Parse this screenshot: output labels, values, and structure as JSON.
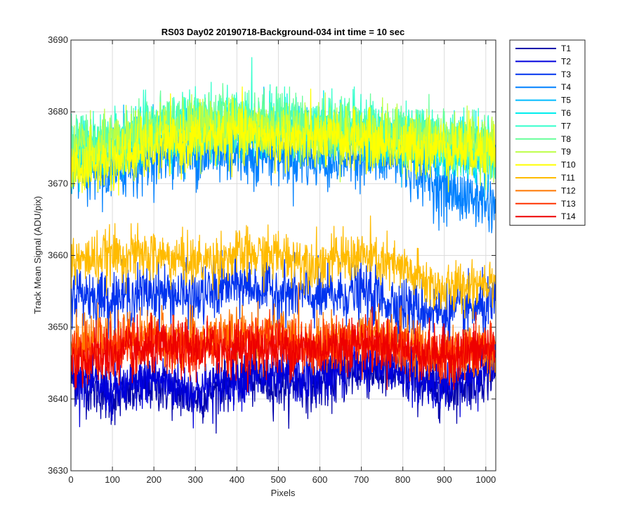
{
  "chart_data": {
    "type": "line",
    "title": "RS03 Day02 20190718-Background-034 int time = 10 sec",
    "xlabel": "Pixels",
    "ylabel": "Track Mean Signal (ADU/pix)",
    "xlim": [
      0,
      1024
    ],
    "ylim": [
      3630,
      3690
    ],
    "xticks": [
      0,
      100,
      200,
      300,
      400,
      500,
      600,
      700,
      800,
      900,
      1000
    ],
    "yticks": [
      3630,
      3640,
      3650,
      3660,
      3670,
      3680,
      3690
    ],
    "grid": true,
    "legend_position": "outside-top-right",
    "n_points": 1024,
    "series": [
      {
        "name": "T1",
        "color": "#0000AA",
        "noise": 1.8,
        "profile": [
          [
            0,
            3643
          ],
          [
            100,
            3640
          ],
          [
            200,
            3642
          ],
          [
            300,
            3640
          ],
          [
            400,
            3643
          ],
          [
            500,
            3642
          ],
          [
            600,
            3642
          ],
          [
            700,
            3644
          ],
          [
            800,
            3643
          ],
          [
            900,
            3641
          ],
          [
            1024,
            3644
          ]
        ]
      },
      {
        "name": "T2",
        "color": "#0000DD",
        "noise": 1.8,
        "profile": [
          [
            0,
            3644
          ],
          [
            100,
            3641
          ],
          [
            200,
            3643
          ],
          [
            300,
            3641
          ],
          [
            400,
            3643
          ],
          [
            500,
            3643
          ],
          [
            600,
            3643
          ],
          [
            700,
            3645
          ],
          [
            800,
            3644
          ],
          [
            900,
            3642
          ],
          [
            1024,
            3645
          ]
        ]
      },
      {
        "name": "T3",
        "color": "#0033EE",
        "noise": 2.0,
        "profile": [
          [
            0,
            3655
          ],
          [
            100,
            3654
          ],
          [
            200,
            3655
          ],
          [
            300,
            3654
          ],
          [
            400,
            3656
          ],
          [
            500,
            3655
          ],
          [
            600,
            3654
          ],
          [
            700,
            3655
          ],
          [
            800,
            3653
          ],
          [
            900,
            3652
          ],
          [
            1024,
            3653
          ]
        ]
      },
      {
        "name": "T4",
        "color": "#0080FF",
        "noise": 2.0,
        "profile": [
          [
            0,
            3672
          ],
          [
            100,
            3671
          ],
          [
            200,
            3674
          ],
          [
            300,
            3674
          ],
          [
            400,
            3674
          ],
          [
            500,
            3674
          ],
          [
            600,
            3673
          ],
          [
            700,
            3674
          ],
          [
            800,
            3673
          ],
          [
            900,
            3669
          ],
          [
            1024,
            3667
          ]
        ]
      },
      {
        "name": "T5",
        "color": "#00BBFF",
        "noise": 1.8,
        "profile": [
          [
            0,
            3673
          ],
          [
            100,
            3674
          ],
          [
            200,
            3676
          ],
          [
            300,
            3676
          ],
          [
            400,
            3677
          ],
          [
            500,
            3677
          ],
          [
            600,
            3676
          ],
          [
            700,
            3676
          ],
          [
            800,
            3675
          ],
          [
            900,
            3674
          ],
          [
            1024,
            3673
          ]
        ]
      },
      {
        "name": "T6",
        "color": "#00EEEE",
        "noise": 1.8,
        "profile": [
          [
            0,
            3674
          ],
          [
            100,
            3675
          ],
          [
            200,
            3677
          ],
          [
            300,
            3677
          ],
          [
            400,
            3678
          ],
          [
            500,
            3678
          ],
          [
            600,
            3677
          ],
          [
            700,
            3677
          ],
          [
            800,
            3676
          ],
          [
            900,
            3675
          ],
          [
            1024,
            3674
          ]
        ]
      },
      {
        "name": "T7",
        "color": "#33FFCC",
        "noise": 2.0,
        "profile": [
          [
            0,
            3675
          ],
          [
            100,
            3676
          ],
          [
            200,
            3678
          ],
          [
            300,
            3679
          ],
          [
            400,
            3679
          ],
          [
            500,
            3679
          ],
          [
            600,
            3678
          ],
          [
            700,
            3678
          ],
          [
            800,
            3677
          ],
          [
            900,
            3676
          ],
          [
            1024,
            3675
          ]
        ]
      },
      {
        "name": "T8",
        "color": "#66FF99",
        "noise": 2.0,
        "profile": [
          [
            0,
            3675
          ],
          [
            100,
            3676
          ],
          [
            200,
            3678
          ],
          [
            300,
            3679
          ],
          [
            400,
            3679
          ],
          [
            500,
            3679
          ],
          [
            600,
            3678
          ],
          [
            700,
            3678
          ],
          [
            800,
            3677
          ],
          [
            900,
            3676
          ],
          [
            1024,
            3675
          ]
        ]
      },
      {
        "name": "T9",
        "color": "#BBFF44",
        "noise": 2.0,
        "profile": [
          [
            0,
            3674
          ],
          [
            100,
            3675
          ],
          [
            200,
            3677
          ],
          [
            300,
            3678
          ],
          [
            400,
            3678
          ],
          [
            500,
            3678
          ],
          [
            600,
            3677
          ],
          [
            700,
            3677
          ],
          [
            800,
            3676
          ],
          [
            900,
            3676
          ],
          [
            1024,
            3675
          ]
        ]
      },
      {
        "name": "T10",
        "color": "#FFFF00",
        "noise": 2.0,
        "profile": [
          [
            0,
            3672
          ],
          [
            100,
            3673
          ],
          [
            200,
            3675
          ],
          [
            300,
            3676
          ],
          [
            400,
            3677
          ],
          [
            500,
            3676
          ],
          [
            600,
            3676
          ],
          [
            700,
            3676
          ],
          [
            800,
            3675
          ],
          [
            900,
            3675
          ],
          [
            1024,
            3675
          ]
        ]
      },
      {
        "name": "T11",
        "color": "#FFBB00",
        "noise": 1.8,
        "profile": [
          [
            0,
            3659
          ],
          [
            100,
            3660
          ],
          [
            200,
            3660
          ],
          [
            300,
            3659
          ],
          [
            400,
            3660
          ],
          [
            500,
            3660
          ],
          [
            600,
            3659
          ],
          [
            700,
            3660
          ],
          [
            800,
            3658
          ],
          [
            900,
            3655
          ],
          [
            1024,
            3657
          ]
        ]
      },
      {
        "name": "T12",
        "color": "#FF7700",
        "noise": 1.8,
        "profile": [
          [
            0,
            3647
          ],
          [
            100,
            3648
          ],
          [
            200,
            3649
          ],
          [
            300,
            3648
          ],
          [
            400,
            3649
          ],
          [
            500,
            3649
          ],
          [
            600,
            3648
          ],
          [
            700,
            3649
          ],
          [
            800,
            3648
          ],
          [
            900,
            3646
          ],
          [
            1024,
            3647
          ]
        ]
      },
      {
        "name": "T13",
        "color": "#FF3300",
        "noise": 1.8,
        "profile": [
          [
            0,
            3646
          ],
          [
            100,
            3647
          ],
          [
            200,
            3648
          ],
          [
            300,
            3647
          ],
          [
            400,
            3648
          ],
          [
            500,
            3648
          ],
          [
            600,
            3647
          ],
          [
            700,
            3648
          ],
          [
            800,
            3647
          ],
          [
            900,
            3646
          ],
          [
            1024,
            3647
          ]
        ]
      },
      {
        "name": "T14",
        "color": "#EE0000",
        "noise": 1.8,
        "profile": [
          [
            0,
            3645
          ],
          [
            100,
            3646
          ],
          [
            200,
            3647
          ],
          [
            300,
            3647
          ],
          [
            400,
            3647
          ],
          [
            500,
            3647
          ],
          [
            600,
            3647
          ],
          [
            700,
            3648
          ],
          [
            800,
            3647
          ],
          [
            900,
            3646
          ],
          [
            1024,
            3647
          ]
        ]
      }
    ]
  }
}
